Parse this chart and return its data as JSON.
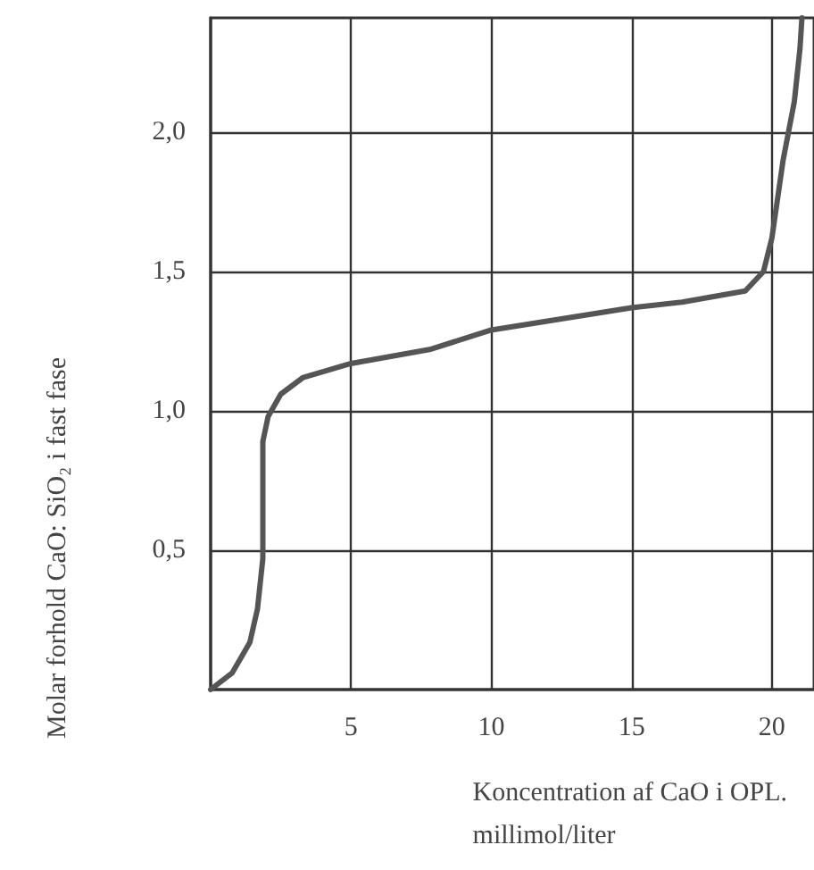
{
  "chart_data": {
    "type": "line",
    "xlabel": "Koncentration af CaO i OPL.\nmillimol/liter",
    "ylabel": "Molar forhold CaO: SiO₂ i fast fase",
    "series": [
      {
        "color": "#555555",
        "x": [
          0,
          0.77,
          1.4,
          1.67,
          1.86,
          1.86,
          1.86,
          2.05,
          2.5,
          3.3,
          5,
          7.8,
          10,
          15,
          16.8,
          19.05,
          19.7,
          20,
          20.4,
          20.8,
          21.0,
          21.07
        ],
        "values": [
          0,
          0.06,
          0.17,
          0.29,
          0.47,
          0.68,
          0.89,
          0.98,
          1.06,
          1.12,
          1.17,
          1.22,
          1.29,
          1.37,
          1.39,
          1.43,
          1.5,
          1.62,
          1.9,
          2.11,
          2.3,
          2.41
        ]
      }
    ],
    "xlim": [
      0,
      21.5
    ],
    "xticks": [
      5,
      10,
      15,
      20
    ],
    "ylim": [
      0,
      2.41
    ],
    "yticks": [
      {
        "value": 0.5,
        "label": "0,5"
      },
      {
        "value": 1,
        "label": "1,0"
      },
      {
        "value": 1.5,
        "label": "1,5"
      },
      {
        "value": 2,
        "label": "2,0"
      }
    ],
    "grid": true,
    "marker": "none",
    "line_style": "solid"
  }
}
